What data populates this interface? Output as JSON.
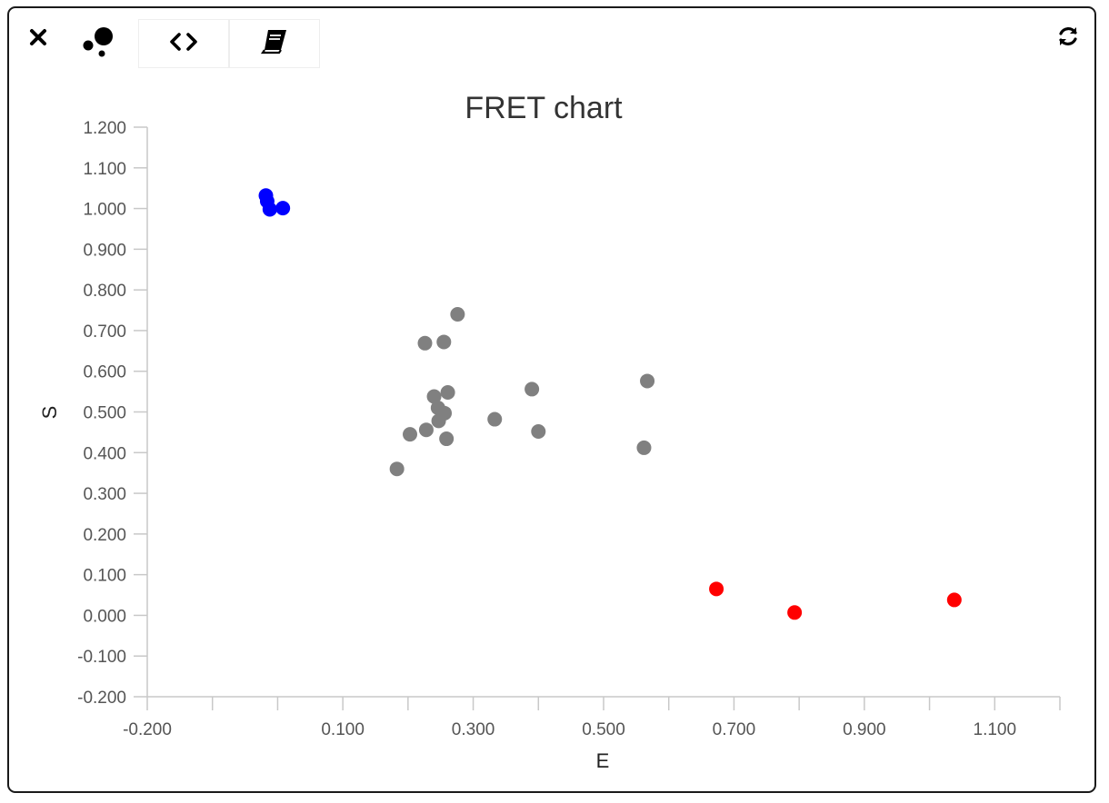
{
  "toolbar": {
    "close_icon": "close-icon",
    "bubbles_icon": "bubbles-icon",
    "code_icon": "code-icon",
    "book_icon": "book-icon",
    "refresh_icon": "refresh-icon"
  },
  "chart_data": {
    "type": "scatter",
    "title": "FRET chart",
    "xlabel": "E",
    "ylabel": "S",
    "xlim": [
      -0.2,
      1.2
    ],
    "ylim": [
      -0.2,
      1.2
    ],
    "x_tick_labels": [
      "-0.200",
      "0.100",
      "0.300",
      "0.500",
      "0.700",
      "0.900",
      "1.100"
    ],
    "y_tick_labels": [
      "1.200",
      "1.100",
      "1.000",
      "0.900",
      "0.800",
      "0.700",
      "0.600",
      "0.500",
      "0.400",
      "0.300",
      "0.200",
      "0.100",
      "0.000",
      "-0.100",
      "-0.200"
    ],
    "grid": false,
    "series": [
      {
        "color": "#0000ff",
        "points": [
          {
            "x": -0.018,
            "y": 1.032
          },
          {
            "x": -0.016,
            "y": 1.018
          },
          {
            "x": -0.012,
            "y": 0.998
          },
          {
            "x": 0.008,
            "y": 1.001
          }
        ]
      },
      {
        "color": "#808080",
        "points": [
          {
            "x": 0.183,
            "y": 0.36
          },
          {
            "x": 0.203,
            "y": 0.445
          },
          {
            "x": 0.226,
            "y": 0.669
          },
          {
            "x": 0.228,
            "y": 0.456
          },
          {
            "x": 0.24,
            "y": 0.538
          },
          {
            "x": 0.246,
            "y": 0.51
          },
          {
            "x": 0.247,
            "y": 0.478
          },
          {
            "x": 0.255,
            "y": 0.672
          },
          {
            "x": 0.256,
            "y": 0.497
          },
          {
            "x": 0.259,
            "y": 0.434
          },
          {
            "x": 0.261,
            "y": 0.548
          },
          {
            "x": 0.276,
            "y": 0.74
          },
          {
            "x": 0.333,
            "y": 0.482
          },
          {
            "x": 0.39,
            "y": 0.556
          },
          {
            "x": 0.4,
            "y": 0.452
          },
          {
            "x": 0.562,
            "y": 0.412
          },
          {
            "x": 0.567,
            "y": 0.576
          }
        ]
      },
      {
        "color": "#ff0000",
        "points": [
          {
            "x": 0.673,
            "y": 0.065
          },
          {
            "x": 0.793,
            "y": 0.007
          },
          {
            "x": 1.038,
            "y": 0.038
          }
        ]
      }
    ]
  }
}
